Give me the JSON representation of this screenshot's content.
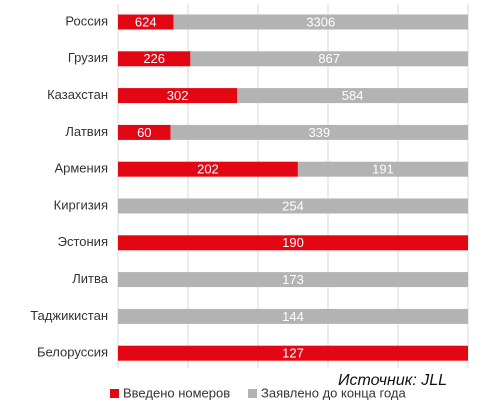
{
  "chart_data": {
    "type": "stacked100_hbar",
    "categories": [
      "Россия",
      "Грузия",
      "Казахстан",
      "Латвия",
      "Армения",
      "Киргизия",
      "Эстония",
      "Литва",
      "Таджикистан",
      "Белоруссия"
    ],
    "series": [
      {
        "name": "Введено номеров",
        "color": "#e30613",
        "values": [
          624,
          226,
          302,
          60,
          202,
          null,
          190,
          null,
          null,
          127
        ]
      },
      {
        "name": "Заявлено до конца года",
        "color": "#b3b3b3",
        "values": [
          3306,
          867,
          584,
          339,
          191,
          254,
          null,
          173,
          144,
          null
        ]
      }
    ],
    "source": "Источник: JLL",
    "grid": true
  }
}
